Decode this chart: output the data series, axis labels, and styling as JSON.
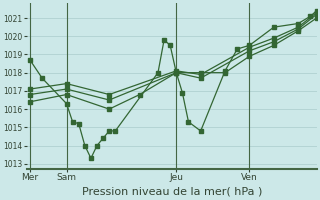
{
  "bg_color": "#cce8e8",
  "grid_color": "#aacccc",
  "line_color": "#336633",
  "marker_color": "#336633",
  "title": "Pression niveau de la mer( hPa )",
  "title_fontsize": 8,
  "ylabel_vals": [
    1013,
    1014,
    1015,
    1016,
    1017,
    1018,
    1019,
    1020,
    1021
  ],
  "ylim": [
    1012.7,
    1021.8
  ],
  "day_positions": [
    0,
    6,
    24,
    36
  ],
  "day_labels": [
    "Mer",
    "Sam",
    "Jeu",
    "Ven"
  ],
  "vline_positions": [
    0,
    6,
    24,
    36
  ],
  "xlim": [
    -0.5,
    47
  ],
  "series1_x": [
    0,
    2,
    6,
    7,
    8,
    9,
    10,
    11,
    12,
    13,
    14,
    21,
    22,
    23,
    24,
    25,
    26,
    28,
    32,
    34,
    36,
    40,
    44,
    46,
    47
  ],
  "series1_y": [
    1018.7,
    1017.7,
    1016.3,
    1015.3,
    1015.2,
    1014.0,
    1013.3,
    1014.0,
    1014.4,
    1014.8,
    1014.8,
    1018.0,
    1019.8,
    1019.5,
    1018.0,
    1016.9,
    1015.3,
    1014.8,
    1018.1,
    1019.3,
    1019.5,
    1020.5,
    1020.7,
    1021.1,
    1021.4
  ],
  "series2_x": [
    0,
    6,
    13,
    18,
    24,
    28,
    32,
    36,
    40,
    44,
    47
  ],
  "series2_y": [
    1016.4,
    1016.8,
    1016.0,
    1016.8,
    1018.0,
    1018.0,
    1018.0,
    1018.9,
    1019.5,
    1020.3,
    1021.0
  ],
  "series3_x": [
    0,
    6,
    13,
    24,
    28,
    36,
    40,
    44,
    47
  ],
  "series3_y": [
    1016.8,
    1017.1,
    1016.5,
    1018.0,
    1017.7,
    1019.2,
    1019.7,
    1020.4,
    1021.2
  ],
  "series4_x": [
    0,
    6,
    13,
    24,
    28,
    36,
    40,
    44,
    47
  ],
  "series4_y": [
    1017.1,
    1017.4,
    1016.8,
    1018.1,
    1017.9,
    1019.4,
    1019.9,
    1020.5,
    1021.3
  ]
}
